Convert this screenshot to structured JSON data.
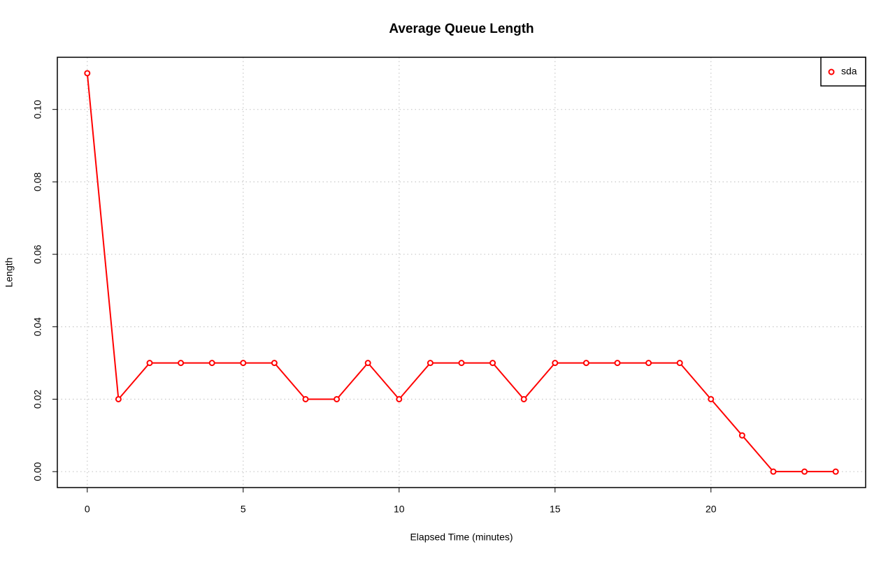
{
  "chart_data": {
    "type": "line",
    "title": "Average Queue Length",
    "x_label": "Elapsed Time (minutes)",
    "y_label": "Length",
    "x": [
      0,
      1,
      2,
      3,
      4,
      5,
      6,
      7,
      8,
      9,
      10,
      11,
      12,
      13,
      14,
      15,
      16,
      17,
      18,
      19,
      20,
      21,
      22,
      23,
      24
    ],
    "series": [
      {
        "name": "sda",
        "color": "#ff0000",
        "values": [
          0.11,
          0.02,
          0.03,
          0.03,
          0.03,
          0.03,
          0.03,
          0.02,
          0.02,
          0.03,
          0.02,
          0.03,
          0.03,
          0.03,
          0.02,
          0.03,
          0.03,
          0.03,
          0.03,
          0.03,
          0.02,
          0.01,
          0,
          0,
          0
        ]
      }
    ],
    "xlim": [
      -0.96,
      24.96
    ],
    "xticks": [
      0,
      5,
      10,
      15,
      20
    ],
    "ylim": [
      -0.0044,
      0.1144
    ],
    "yticks": [
      {
        "value": 0,
        "label": "0.00"
      },
      {
        "value": 0.02,
        "label": "0.02"
      },
      {
        "value": 0.04,
        "label": "0.04"
      },
      {
        "value": 0.06,
        "label": "0.06"
      },
      {
        "value": 0.08,
        "label": "0.08"
      },
      {
        "value": 0.1,
        "label": "0.10"
      }
    ],
    "grid": true,
    "legend": "top-right"
  }
}
